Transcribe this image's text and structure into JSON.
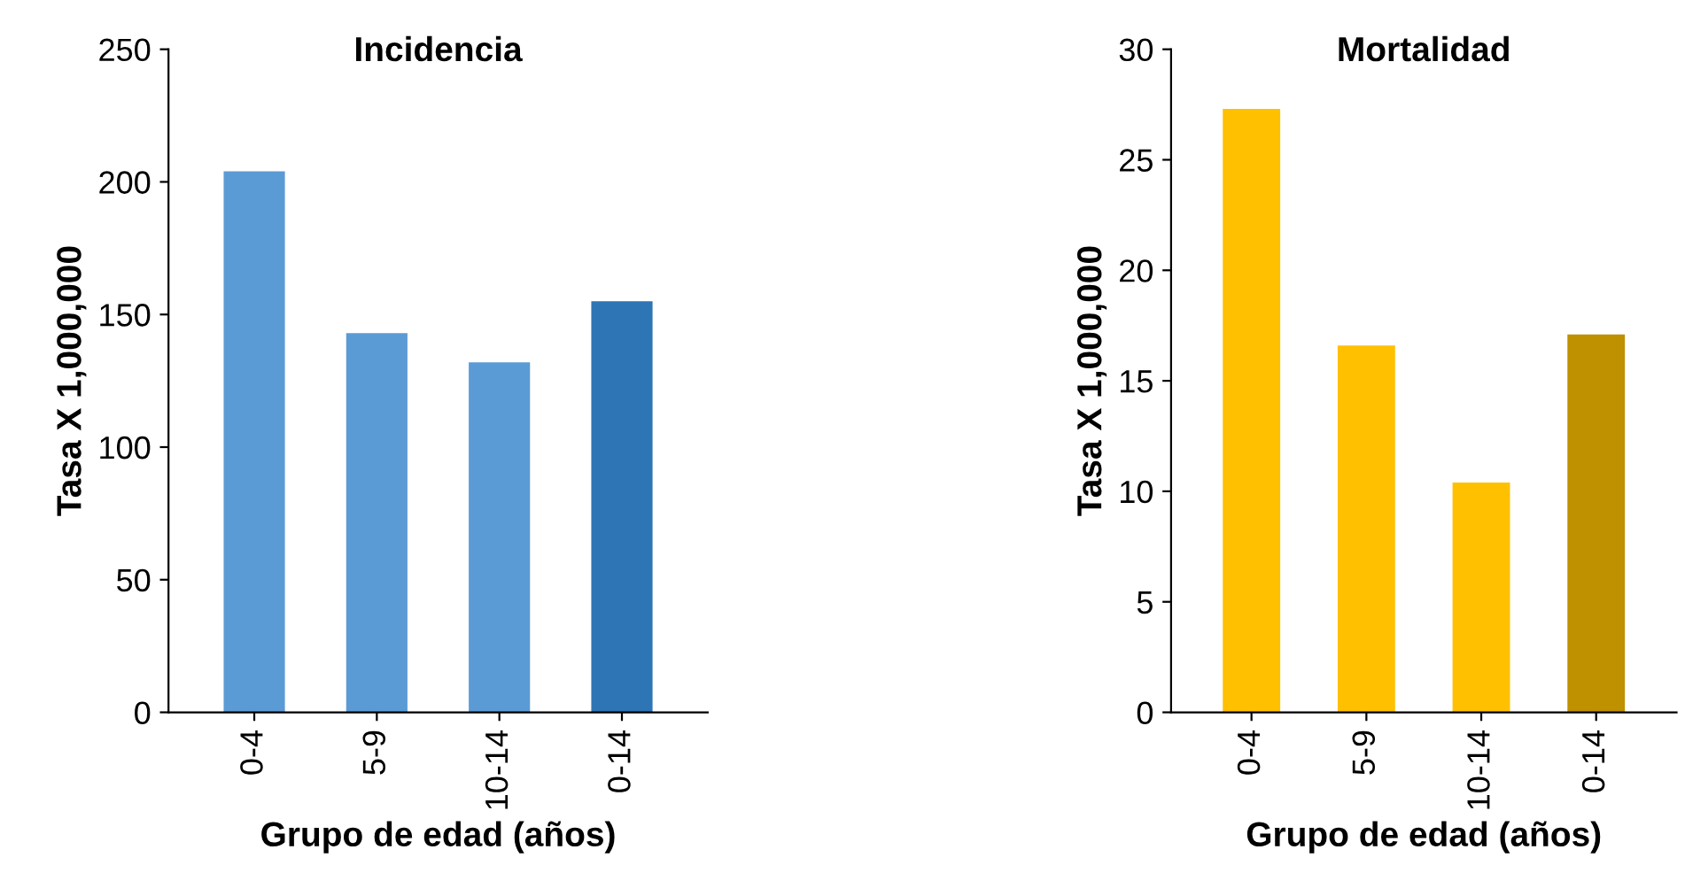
{
  "chart_data": [
    {
      "type": "bar",
      "title": "Incidencia",
      "xlabel": "Grupo de edad (años)",
      "ylabel": "Tasa X 1,000,000",
      "categories": [
        "0-4",
        "5-9",
        "10-14",
        "0-14"
      ],
      "values": [
        204,
        143,
        132,
        155
      ],
      "colors": [
        "#5b9bd5",
        "#5b9bd5",
        "#5b9bd5",
        "#2e75b6"
      ],
      "ylim": [
        0,
        250
      ],
      "yticks": [
        0,
        50,
        100,
        150,
        200,
        250
      ],
      "grid": false,
      "legend": false
    },
    {
      "type": "bar",
      "title": "Mortalidad",
      "xlabel": "Grupo de edad (años)",
      "ylabel": "Tasa X 1,000,000",
      "categories": [
        "0-4",
        "5-9",
        "10-14",
        "0-14"
      ],
      "values": [
        27.3,
        16.6,
        10.4,
        17.1
      ],
      "colors": [
        "#ffc000",
        "#ffc000",
        "#ffc000",
        "#bf9000"
      ],
      "ylim": [
        0,
        30
      ],
      "yticks": [
        0,
        5,
        10,
        15,
        20,
        25,
        30
      ],
      "grid": false,
      "legend": false
    }
  ]
}
